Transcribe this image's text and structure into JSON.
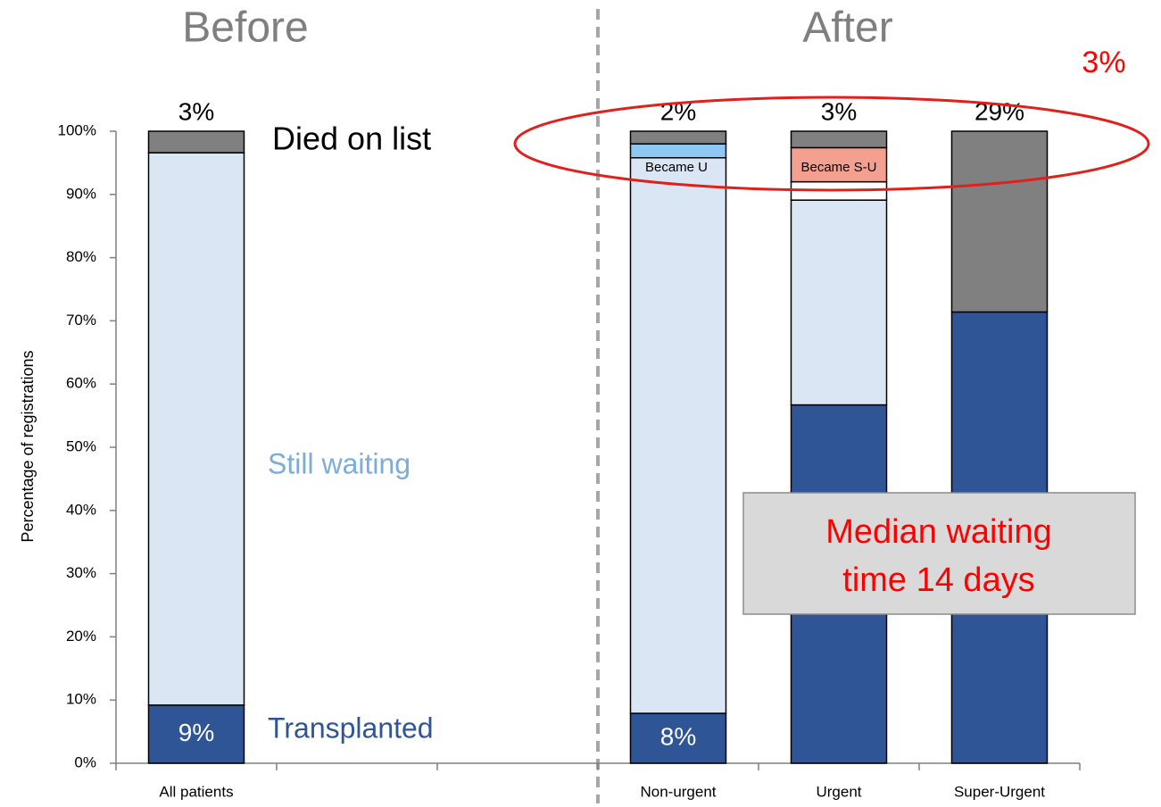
{
  "chart_data": {
    "type": "stacked-bar",
    "before_label": "Before",
    "after_label": "After",
    "annotation": "3%",
    "note": [
      "Median waiting",
      "time 14 days"
    ],
    "y_axis_label": "Percentage of registrations",
    "categories": [
      "All patients",
      null,
      null,
      "Non-urgent",
      "Urgent",
      "Super-Urgent"
    ],
    "series": [
      {
        "name": "Transplanted",
        "color": "#2f5597",
        "values": [
          9.2,
          null,
          null,
          7.9,
          56.7,
          71.4
        ],
        "value_labels": [
          "9%",
          null,
          null,
          "8%",
          null,
          null
        ]
      },
      {
        "name": "Still waiting",
        "color": "#dae6f3",
        "values": [
          87.4,
          null,
          null,
          87.9,
          32.4,
          null
        ]
      },
      {
        "name": "Became U",
        "color": "#8ec8f2",
        "values": [
          null,
          null,
          null,
          2.2,
          null,
          null
        ]
      },
      {
        "color": "#ffffff",
        "values": [
          null,
          null,
          null,
          null,
          2.9,
          null
        ]
      },
      {
        "name": "Became S-U",
        "color": "#f4a090",
        "values": [
          null,
          null,
          null,
          null,
          5.4,
          null
        ]
      },
      {
        "name": "Died on list",
        "color": "#808080",
        "values": [
          3.4,
          null,
          null,
          2.0,
          2.6,
          28.6
        ],
        "value_labels": [
          "3%",
          null,
          null,
          "2%",
          "3%",
          "29%"
        ]
      }
    ],
    "ylim": [
      0,
      100
    ],
    "yticks": [
      {
        "value": 0,
        "label": "0%"
      },
      {
        "value": 10,
        "label": "10%"
      },
      {
        "value": 20,
        "label": "20%"
      },
      {
        "value": 30,
        "label": "30%"
      },
      {
        "value": 40,
        "label": "40%"
      },
      {
        "value": 50,
        "label": "50%"
      },
      {
        "value": 60,
        "label": "60%"
      },
      {
        "value": 70,
        "label": "70%"
      },
      {
        "value": 80,
        "label": "80%"
      },
      {
        "value": 90,
        "label": "90%"
      },
      {
        "value": 100,
        "label": "100%"
      }
    ],
    "grid": false
  }
}
